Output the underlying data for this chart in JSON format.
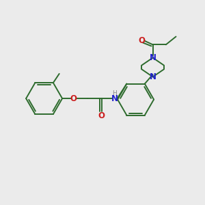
{
  "bg_color": "#ebebeb",
  "bond_color": "#2d6b2d",
  "n_color": "#2020cc",
  "o_color": "#cc2020",
  "h_color": "#888888",
  "lw": 1.4,
  "figsize": [
    3.0,
    3.0
  ],
  "dpi": 100,
  "xlim": [
    0,
    10
  ],
  "ylim": [
    0,
    10
  ]
}
